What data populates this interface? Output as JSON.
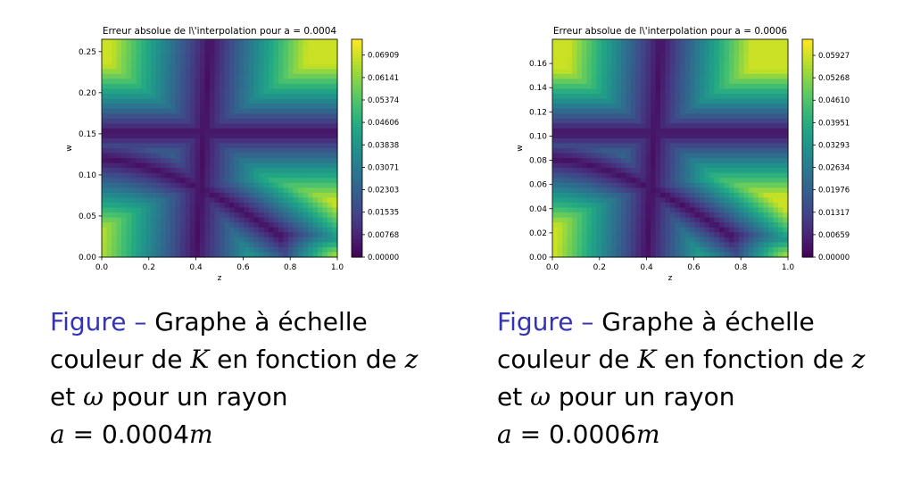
{
  "charts": [
    {
      "caption": {
        "figure_label": "Figure –",
        "line1": "Graphe à échelle",
        "line2_pre": "couleur de",
        "line2_k": "K",
        "line2_mid": "en fonction de",
        "line2_z": "z",
        "line3_pre": "et",
        "line3_omega": "ω",
        "line3_post": "pour un rayon",
        "line4_a": "a",
        "line4_eq": "= 0.0004",
        "line4_m": "m"
      }
    },
    {
      "caption": {
        "figure_label": "Figure –",
        "line1": "Graphe à échelle",
        "line2_pre": "couleur de",
        "line2_k": "K",
        "line2_mid": "en fonction de",
        "line2_z": "z",
        "line3_pre": "et",
        "line3_omega": "ω",
        "line3_post": "pour un rayon",
        "line4_a": "a",
        "line4_eq": "= 0.0006",
        "line4_m": "m"
      }
    }
  ],
  "chart_data": [
    {
      "type": "heatmap",
      "title": "Erreur absolue de l\\'interpolation pour a = 0.0004",
      "xlabel": "z",
      "ylabel": "w",
      "xlim": [
        0.0,
        1.0
      ],
      "ylim": [
        0.0,
        0.265
      ],
      "x_ticks": [
        "0.0",
        "0.2",
        "0.4",
        "0.6",
        "0.8",
        "1.0"
      ],
      "x_tick_values": [
        0.0,
        0.2,
        0.4,
        0.6,
        0.8,
        1.0
      ],
      "y_ticks": [
        "0.00",
        "0.05",
        "0.10",
        "0.15",
        "0.20",
        "0.25"
      ],
      "y_tick_values": [
        0.0,
        0.05,
        0.1,
        0.15,
        0.2,
        0.25
      ],
      "colorbar_ticks": [
        "0.00000",
        "0.00768",
        "0.01535",
        "0.02303",
        "0.03071",
        "0.03838",
        "0.04606",
        "0.05374",
        "0.06141",
        "0.06909"
      ],
      "colorbar_tick_values": [
        0.0,
        0.00768,
        0.01535,
        0.02303,
        0.03071,
        0.03838,
        0.04606,
        0.05374,
        0.06141,
        0.06909
      ],
      "vmin": 0.0,
      "vmax": 0.0745,
      "colormap": "viridis"
    },
    {
      "type": "heatmap",
      "title": "Erreur absolue de l\\'interpolation pour a = 0.0006",
      "xlabel": "z",
      "ylabel": "w",
      "xlim": [
        0.0,
        1.0
      ],
      "ylim": [
        0.0,
        0.18
      ],
      "x_ticks": [
        "0.0",
        "0.2",
        "0.4",
        "0.6",
        "0.8",
        "1.0"
      ],
      "x_tick_values": [
        0.0,
        0.2,
        0.4,
        0.6,
        0.8,
        1.0
      ],
      "y_ticks": [
        "0.00",
        "0.02",
        "0.04",
        "0.06",
        "0.08",
        "0.10",
        "0.12",
        "0.14",
        "0.16"
      ],
      "y_tick_values": [
        0.0,
        0.02,
        0.04,
        0.06,
        0.08,
        0.1,
        0.12,
        0.14,
        0.16
      ],
      "colorbar_ticks": [
        "0.00000",
        "0.00659",
        "0.01317",
        "0.01976",
        "0.02634",
        "0.03293",
        "0.03951",
        "0.04610",
        "0.05268",
        "0.05927"
      ],
      "colorbar_tick_values": [
        0.0,
        0.00659,
        0.01317,
        0.01976,
        0.02634,
        0.03293,
        0.03951,
        0.0461,
        0.05268,
        0.05927
      ],
      "vmin": 0.0,
      "vmax": 0.064,
      "colormap": "viridis"
    }
  ]
}
